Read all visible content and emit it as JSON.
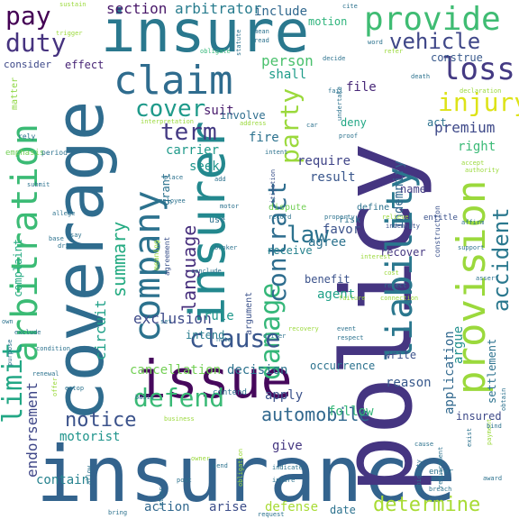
{
  "words": [
    {
      "text": "insurance",
      "color": "#33638d"
    },
    {
      "text": "policy",
      "color": "#453581"
    },
    {
      "text": "coverage",
      "color": "#2f6c8e"
    },
    {
      "text": "insure",
      "color": "#2a788e"
    },
    {
      "text": "insurer",
      "color": "#23888e"
    },
    {
      "text": "issue",
      "color": "#46085c"
    },
    {
      "text": "company",
      "color": "#2c728e"
    },
    {
      "text": "provision",
      "color": "#9bd93c"
    },
    {
      "text": "arbitration",
      "color": "#3bbb75"
    },
    {
      "text": "liability",
      "color": "#2a778e"
    },
    {
      "text": "claim",
      "color": "#2f6c8e"
    },
    {
      "text": "provide",
      "color": "#3fbc73"
    },
    {
      "text": "damage",
      "color": "#35b779"
    },
    {
      "text": "contract",
      "color": "#2e6d8e"
    },
    {
      "text": "defend",
      "color": "#3aba76"
    },
    {
      "text": "accident",
      "color": "#2a788e"
    },
    {
      "text": "clause",
      "color": "#39568c"
    },
    {
      "text": "loss",
      "color": "#443a83"
    },
    {
      "text": "vehicle",
      "color": "#3f4788"
    },
    {
      "text": "party",
      "color": "#9bd93c"
    },
    {
      "text": "injury",
      "color": "#dde318"
    },
    {
      "text": "duty",
      "color": "#46337f"
    },
    {
      "text": "pay",
      "color": "#440154"
    },
    {
      "text": "limit",
      "color": "#22a785"
    },
    {
      "text": "cover",
      "color": "#1f9a8a"
    },
    {
      "text": "term",
      "color": "#443a83"
    },
    {
      "text": "law",
      "color": "#2c728e"
    },
    {
      "text": "language",
      "color": "#472f7d"
    },
    {
      "text": "summary",
      "color": "#25ab82"
    },
    {
      "text": "notice",
      "color": "#3b528b"
    },
    {
      "text": "automobile",
      "color": "#31688e"
    },
    {
      "text": "determine",
      "color": "#a8db34"
    },
    {
      "text": "settlement",
      "color": "#2c728e"
    },
    {
      "text": "application",
      "color": "#31688e"
    },
    {
      "text": "endorsement",
      "color": "#3f4788"
    },
    {
      "text": "circuit",
      "color": "#1fa188"
    },
    {
      "text": "exclusion",
      "color": "#3e4a89"
    },
    {
      "text": "indemnify",
      "color": "#31688e"
    },
    {
      "text": "section",
      "color": "#481769"
    },
    {
      "text": "arbitrator",
      "color": "#287c8e"
    },
    {
      "text": "person",
      "color": "#4ac16d"
    },
    {
      "text": "include",
      "color": "#31688e"
    },
    {
      "text": "motion",
      "color": "#2fb47c"
    },
    {
      "text": "shall",
      "color": "#1e9c89"
    },
    {
      "text": "effect",
      "color": "#482576"
    },
    {
      "text": "construe",
      "color": "#38598c"
    },
    {
      "text": "file",
      "color": "#482878"
    },
    {
      "text": "suit",
      "color": "#481a6c"
    },
    {
      "text": "involve",
      "color": "#2e6e8e"
    },
    {
      "text": "deny",
      "color": "#22a785"
    },
    {
      "text": "act",
      "color": "#2c728e"
    },
    {
      "text": "premium",
      "color": "#3e4989"
    },
    {
      "text": "right",
      "color": "#3aba76"
    },
    {
      "text": "fire",
      "color": "#2c728e"
    },
    {
      "text": "carrier",
      "color": "#1f9a8a"
    },
    {
      "text": "seek",
      "color": "#1f948c"
    },
    {
      "text": "grant",
      "color": "#2c728e"
    },
    {
      "text": "require",
      "color": "#404588"
    },
    {
      "text": "result",
      "color": "#39568c"
    },
    {
      "text": "name",
      "color": "#433e85"
    },
    {
      "text": "argue",
      "color": "#21908d"
    },
    {
      "text": "favor",
      "color": "#3b528b"
    },
    {
      "text": "agree",
      "color": "#2c728e"
    },
    {
      "text": "receive",
      "color": "#26828e"
    },
    {
      "text": "recover",
      "color": "#453781"
    },
    {
      "text": "benefit",
      "color": "#3b528b"
    },
    {
      "text": "agent",
      "color": "#1fa188"
    },
    {
      "text": "rule",
      "color": "#1f988b"
    },
    {
      "text": "intend",
      "color": "#287c8e"
    },
    {
      "text": "occurrence",
      "color": "#2c728e"
    },
    {
      "text": "write",
      "color": "#3b528b"
    },
    {
      "text": "reason",
      "color": "#38598c"
    },
    {
      "text": "cancellation",
      "color": "#73d055"
    },
    {
      "text": "decision",
      "color": "#2c728e"
    },
    {
      "text": "apply",
      "color": "#3b528b"
    },
    {
      "text": "follow",
      "color": "#35b779"
    },
    {
      "text": "insured",
      "color": "#3e4a89"
    },
    {
      "text": "motorist",
      "color": "#1f948c"
    },
    {
      "text": "give",
      "color": "#453781"
    },
    {
      "text": "contain",
      "color": "#26828e"
    },
    {
      "text": "action",
      "color": "#31688e"
    },
    {
      "text": "arise",
      "color": "#3d4e8a"
    },
    {
      "text": "defense",
      "color": "#a8db34"
    },
    {
      "text": "date",
      "color": "#2c728e"
    },
    {
      "text": "complaint",
      "color": "#25ab82"
    },
    {
      "text": "consider",
      "color": "#3e4989"
    },
    {
      "text": "matter",
      "color": "#8fd744"
    },
    {
      "text": "emphasis",
      "color": "#73d055"
    },
    {
      "text": "sustain",
      "color": "#9bd93c"
    },
    {
      "text": "trigger",
      "color": "#9bd93c"
    },
    {
      "text": "cite",
      "color": "#2c728e"
    },
    {
      "text": "word",
      "color": "#2c728e"
    },
    {
      "text": "refer",
      "color": "#9bd93c"
    },
    {
      "text": "obligate",
      "color": "#35b779"
    },
    {
      "text": "statute",
      "color": "#2c728e"
    },
    {
      "text": "mean",
      "color": "#2c728e"
    },
    {
      "text": "read",
      "color": "#2c728e"
    },
    {
      "text": "decide",
      "color": "#2c728e"
    },
    {
      "text": "death",
      "color": "#2c728e"
    },
    {
      "text": "declaration",
      "color": "#9bd93c"
    },
    {
      "text": "fail",
      "color": "#2c728e"
    },
    {
      "text": "proof",
      "color": "#2c728e"
    },
    {
      "text": "intent",
      "color": "#2c728e"
    },
    {
      "text": "litigation",
      "color": "#3b528b"
    },
    {
      "text": "entitle",
      "color": "#3b528b"
    },
    {
      "text": "construction",
      "color": "#3b528b"
    },
    {
      "text": "indemnity",
      "color": "#3b528b"
    },
    {
      "text": "risk",
      "color": "#2c728e"
    },
    {
      "text": "define",
      "color": "#2c728e"
    },
    {
      "text": "dispute",
      "color": "#73d055"
    },
    {
      "text": "record",
      "color": "#2c728e"
    },
    {
      "text": "property",
      "color": "#2c728e"
    },
    {
      "text": "relieve",
      "color": "#9bd93c"
    },
    {
      "text": "affirm",
      "color": "#2c728e"
    },
    {
      "text": "support",
      "color": "#2c728e"
    },
    {
      "text": "assert",
      "color": "#2c728e"
    },
    {
      "text": "reject",
      "color": "#2c728e"
    },
    {
      "text": "interest",
      "color": "#9bd93c"
    },
    {
      "text": "broker",
      "color": "#2c728e"
    },
    {
      "text": "employee",
      "color": "#2c728e"
    },
    {
      "text": "place",
      "color": "#2c728e"
    },
    {
      "text": "add",
      "color": "#2c728e"
    },
    {
      "text": "use",
      "color": "#2c728e"
    },
    {
      "text": "motor",
      "color": "#2c728e"
    },
    {
      "text": "agreement",
      "color": "#3b528b"
    },
    {
      "text": "meaning",
      "color": "#9bd93c"
    },
    {
      "text": "conclude",
      "color": "#2c728e"
    },
    {
      "text": "set",
      "color": "#2c728e"
    },
    {
      "text": "driver",
      "color": "#2c728e"
    },
    {
      "text": "note",
      "color": "#2c728e"
    },
    {
      "text": "event",
      "color": "#2c728e"
    },
    {
      "text": "respect",
      "color": "#2c728e"
    },
    {
      "text": "argument",
      "color": "#3b528b"
    },
    {
      "text": "contend",
      "color": "#2c728e"
    },
    {
      "text": "basis",
      "color": "#2c728e"
    },
    {
      "text": "business",
      "color": "#9bd93c"
    },
    {
      "text": "indicate",
      "color": "#2c728e"
    },
    {
      "text": "obligation",
      "color": "#9bd93c"
    },
    {
      "text": "injure",
      "color": "#2c728e"
    },
    {
      "text": "request",
      "color": "#2c728e"
    },
    {
      "text": "breach",
      "color": "#2c728e"
    },
    {
      "text": "enter",
      "color": "#2c728e"
    },
    {
      "text": "award",
      "color": "#2c728e"
    },
    {
      "text": "ambiguity",
      "color": "#2c728e"
    },
    {
      "text": "requirement",
      "color": "#2c728e"
    },
    {
      "text": "payment",
      "color": "#9bd93c"
    },
    {
      "text": "cause",
      "color": "#2c728e"
    },
    {
      "text": "exist",
      "color": "#2c728e"
    },
    {
      "text": "bind",
      "color": "#2c728e"
    },
    {
      "text": "obtain",
      "color": "#2c728e"
    },
    {
      "text": "send",
      "color": "#2c728e"
    },
    {
      "text": "letter",
      "color": "#2c728e"
    },
    {
      "text": "owner",
      "color": "#9bd93c"
    },
    {
      "text": "bring",
      "color": "#2c728e"
    },
    {
      "text": "post",
      "color": "#2c728e"
    },
    {
      "text": "allow",
      "color": "#2c728e"
    },
    {
      "text": "offer",
      "color": "#9bd93c"
    },
    {
      "text": "estop",
      "color": "#2c728e"
    },
    {
      "text": "renewal",
      "color": "#2c728e"
    },
    {
      "text": "condition",
      "color": "#2c728e"
    },
    {
      "text": "exclude",
      "color": "#2c728e"
    },
    {
      "text": "own",
      "color": "#2c728e"
    },
    {
      "text": "purpose",
      "color": "#2c728e"
    },
    {
      "text": "submit",
      "color": "#2c728e"
    },
    {
      "text": "allege",
      "color": "#2c728e"
    },
    {
      "text": "base",
      "color": "#2c728e"
    },
    {
      "text": "say",
      "color": "#2c728e"
    },
    {
      "text": "drive",
      "color": "#2c728e"
    },
    {
      "text": "period",
      "color": "#2c728e"
    },
    {
      "text": "rely",
      "color": "#2c728e"
    },
    {
      "text": "interpretation",
      "color": "#9bd93c"
    },
    {
      "text": "address",
      "color": "#9bd93c"
    },
    {
      "text": "car",
      "color": "#2c728e"
    },
    {
      "text": "undertake",
      "color": "#2c728e"
    },
    {
      "text": "authority",
      "color": "#9bd93c"
    },
    {
      "text": "accept",
      "color": "#9bd93c"
    },
    {
      "text": "failure",
      "color": "#9bd93c"
    },
    {
      "text": "connection",
      "color": "#9bd93c"
    },
    {
      "text": "recovery",
      "color": "#9bd93c"
    },
    {
      "text": "cost",
      "color": "#9bd93c"
    }
  ]
}
